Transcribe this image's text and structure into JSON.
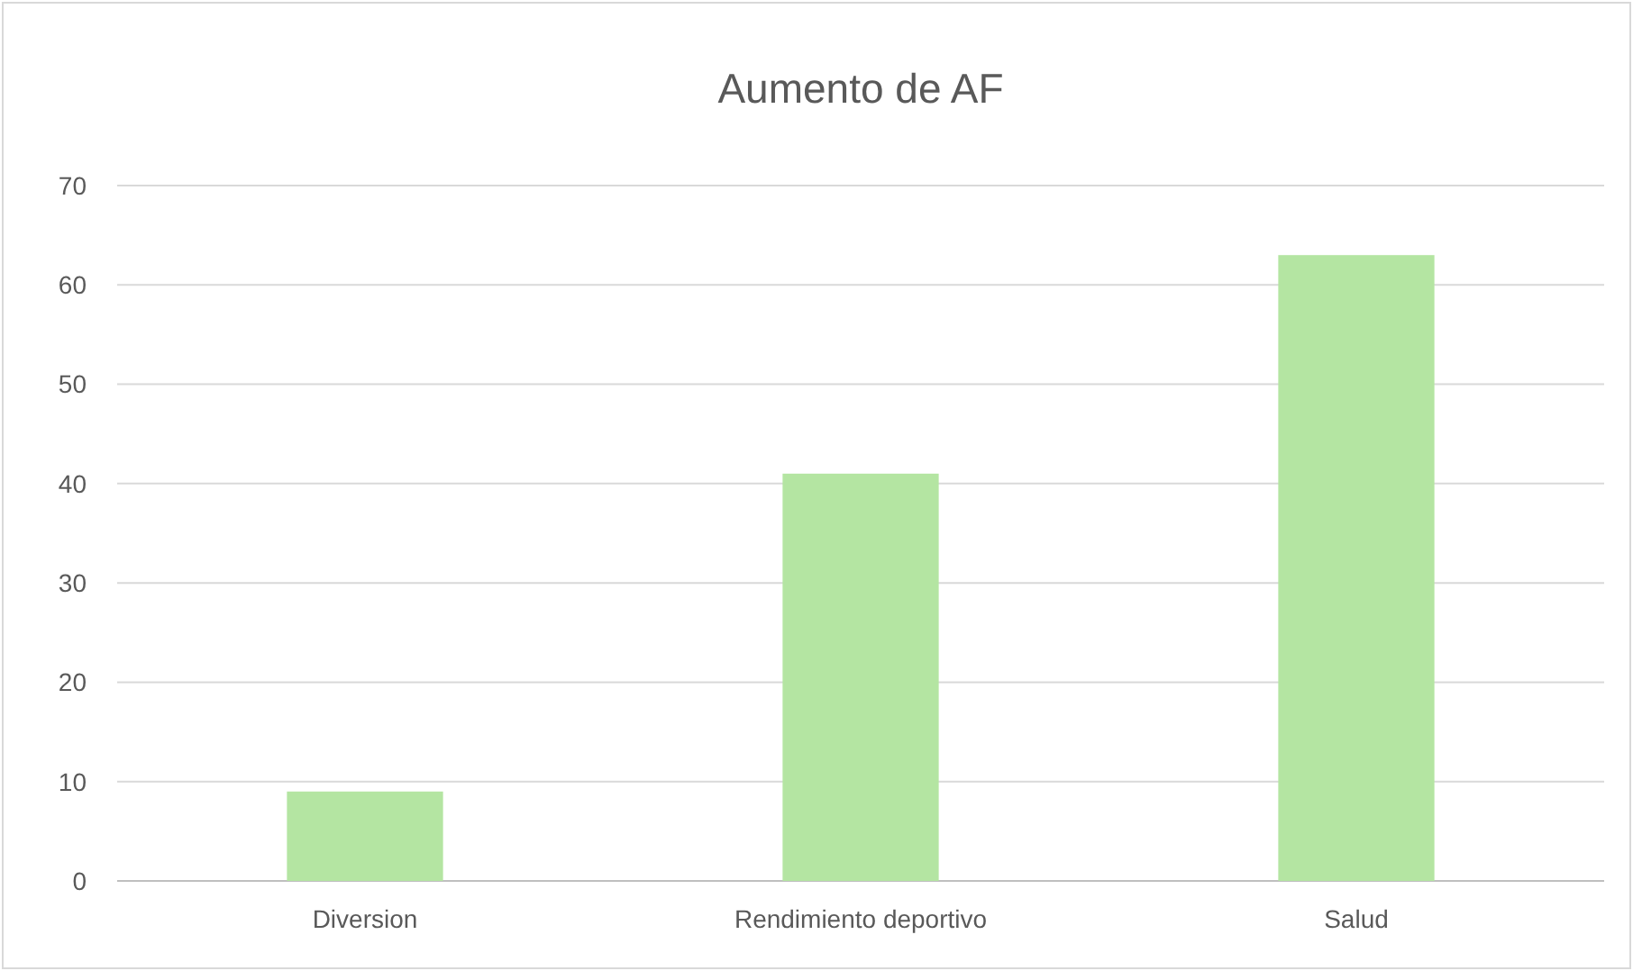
{
  "chart_data": {
    "type": "bar",
    "title": "Aumento de AF",
    "categories": [
      "Diversion",
      "Rendimiento deportivo",
      "Salud"
    ],
    "values": [
      9,
      41,
      63
    ],
    "color": "#b4e5a2",
    "ylim": [
      0,
      70
    ],
    "yticks": [
      0,
      10,
      20,
      30,
      40,
      50,
      60,
      70
    ],
    "grid": "y"
  }
}
